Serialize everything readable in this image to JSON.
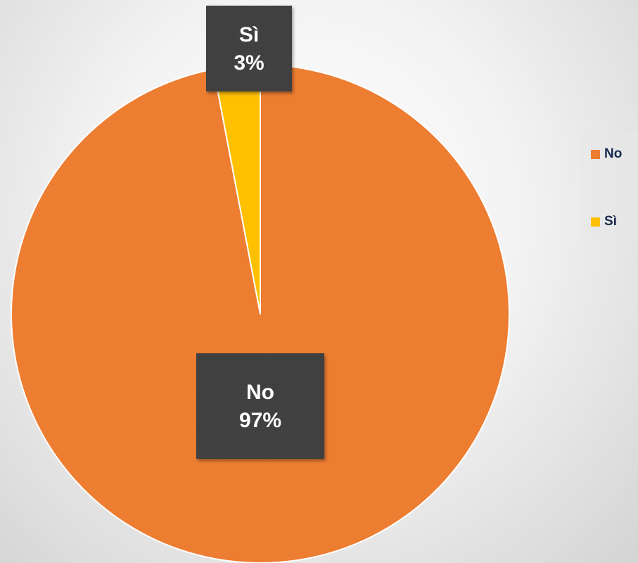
{
  "chart_data": {
    "type": "pie",
    "title": "",
    "categories": [
      "No",
      "Sì"
    ],
    "values": [
      97,
      3
    ],
    "value_labels": [
      "97%",
      "3%"
    ],
    "colors": [
      "#ed7d31",
      "#ffc000"
    ],
    "legend": {
      "placement": "right",
      "items": [
        {
          "label": "No",
          "color": "#ed7d31"
        },
        {
          "label": "Sì",
          "color": "#ffc000"
        }
      ]
    },
    "data_label_style": {
      "background": "#404040",
      "text_color": "#ffffff"
    }
  }
}
